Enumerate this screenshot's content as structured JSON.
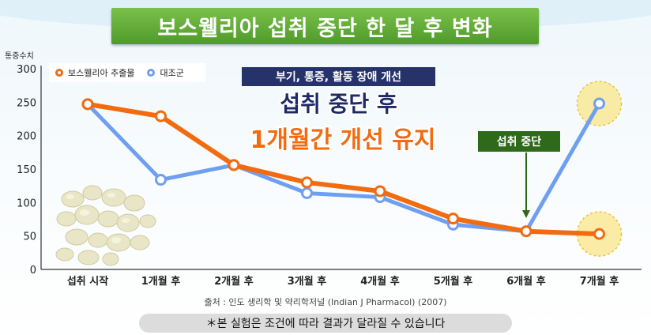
{
  "title": "보스웰리아 섭취 중단 한 달 후 변화",
  "colors": {
    "orange": "#f26b10",
    "blue": "#6f9ff0",
    "title_bg": "#5da433",
    "navy": "#26336b",
    "stop_green": "#2e6a1a"
  },
  "chart_data": {
    "type": "line",
    "ylabel": "통증수치",
    "xlabel": "",
    "ylim": [
      0,
      300
    ],
    "yticks": [
      0,
      50,
      100,
      150,
      200,
      250,
      300
    ],
    "categories": [
      "섭취 시작",
      "1개월 후",
      "2개월 후",
      "3개월 후",
      "4개월 후",
      "5개월 후",
      "6개월 후",
      "7개월 후"
    ],
    "series": [
      {
        "name": "보스웰리아 추출물",
        "color": "#f26b10",
        "values": [
          247,
          229,
          156,
          130,
          117,
          76,
          57,
          53
        ]
      },
      {
        "name": "대조군",
        "color": "#6f9ff0",
        "values": [
          247,
          134,
          156,
          114,
          108,
          67,
          57,
          248
        ]
      }
    ],
    "legend": "top-left",
    "grid": false
  },
  "annotations": {
    "tag": "부기, 통증, 활동 장애 개선",
    "line1": "섭취 중단 후",
    "line2": "1개월간 개선 유지",
    "stop_label": "섭취 중단"
  },
  "source": "출처 : 인도 생리학 및 약리학저널 (Indian J Pharmacol) (2007)",
  "note": "＊본 실험은 조건에 따라 결과가 달라질 수 있습니다"
}
